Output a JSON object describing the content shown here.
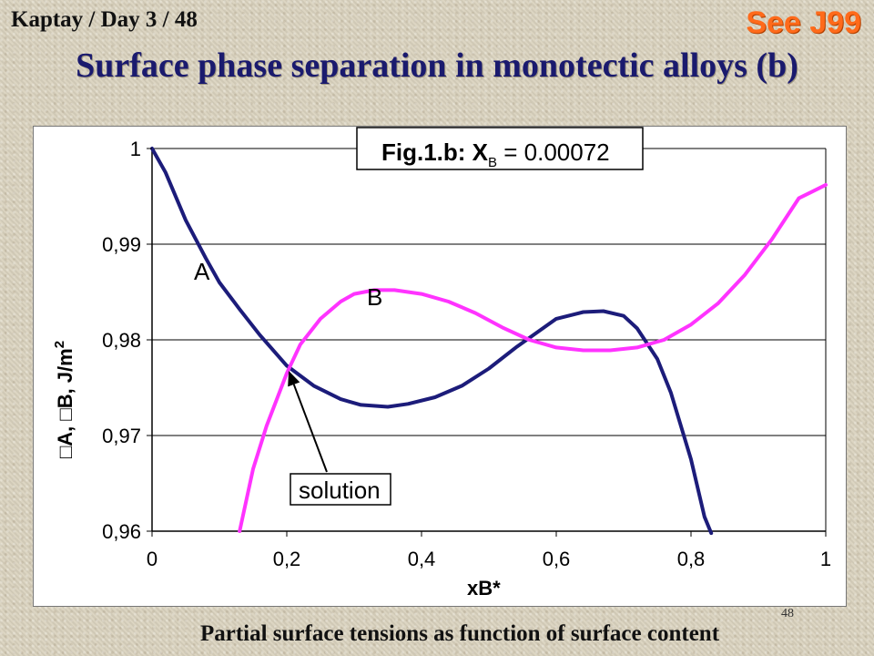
{
  "header": {
    "left_text": "Kaptay / Day 3 / 48",
    "right_text": "See J99"
  },
  "title": "Surface phase separation in monotectic alloys (b)",
  "page_number": "48",
  "caption": "Partial surface tensions as function of surface content",
  "colors": {
    "series_A": "#1c1c7a",
    "series_B": "#ff33ff",
    "title": "#1a1a6e",
    "header_right": "#ff6a1a"
  },
  "chart_data": {
    "type": "line",
    "title": "Fig.1.b: X",
    "title_subscript": "B",
    "title_value": " = 0.00072",
    "xlabel": "xB*",
    "ylabel_parts": [
      "□A, □B, J/m",
      "2"
    ],
    "xlim": [
      0,
      1
    ],
    "ylim": [
      0.96,
      1.0
    ],
    "x_ticks": [
      "0",
      "0,2",
      "0,4",
      "0,6",
      "0,8",
      "1"
    ],
    "x_tick_values": [
      0,
      0.2,
      0.4,
      0.6,
      0.8,
      1
    ],
    "y_ticks": [
      "0,96",
      "0,97",
      "0,98",
      "0,99",
      "1"
    ],
    "y_tick_values": [
      0.96,
      0.97,
      0.98,
      0.99,
      1.0
    ],
    "grid": "horizontal",
    "series": [
      {
        "name": "A",
        "points": [
          [
            0,
            1.0
          ],
          [
            0.02,
            0.9975
          ],
          [
            0.05,
            0.9925
          ],
          [
            0.08,
            0.9885
          ],
          [
            0.1,
            0.986
          ],
          [
            0.13,
            0.9832
          ],
          [
            0.16,
            0.9805
          ],
          [
            0.2,
            0.9773
          ],
          [
            0.24,
            0.9752
          ],
          [
            0.28,
            0.9738
          ],
          [
            0.31,
            0.9732
          ],
          [
            0.35,
            0.973
          ],
          [
            0.38,
            0.9733
          ],
          [
            0.42,
            0.974
          ],
          [
            0.46,
            0.9752
          ],
          [
            0.5,
            0.977
          ],
          [
            0.54,
            0.9792
          ],
          [
            0.58,
            0.9812
          ],
          [
            0.6,
            0.9822
          ],
          [
            0.64,
            0.9829
          ],
          [
            0.67,
            0.983
          ],
          [
            0.7,
            0.9825
          ],
          [
            0.72,
            0.9812
          ],
          [
            0.75,
            0.978
          ],
          [
            0.77,
            0.9745
          ],
          [
            0.8,
            0.9675
          ],
          [
            0.82,
            0.9615
          ],
          [
            0.83,
            0.9598
          ]
        ]
      },
      {
        "name": "B",
        "points": [
          [
            0.13,
            0.96
          ],
          [
            0.15,
            0.9665
          ],
          [
            0.17,
            0.971
          ],
          [
            0.2,
            0.9765
          ],
          [
            0.22,
            0.9795
          ],
          [
            0.25,
            0.9822
          ],
          [
            0.28,
            0.984
          ],
          [
            0.3,
            0.9848
          ],
          [
            0.33,
            0.9852
          ],
          [
            0.36,
            0.9852
          ],
          [
            0.4,
            0.9848
          ],
          [
            0.44,
            0.984
          ],
          [
            0.48,
            0.9828
          ],
          [
            0.52,
            0.9813
          ],
          [
            0.56,
            0.98
          ],
          [
            0.6,
            0.9792
          ],
          [
            0.64,
            0.9789
          ],
          [
            0.68,
            0.9789
          ],
          [
            0.72,
            0.9792
          ],
          [
            0.76,
            0.98
          ],
          [
            0.8,
            0.9816
          ],
          [
            0.84,
            0.9838
          ],
          [
            0.88,
            0.9868
          ],
          [
            0.92,
            0.9905
          ],
          [
            0.96,
            0.9948
          ],
          [
            1.0,
            0.9962
          ]
        ]
      }
    ],
    "annotations": [
      {
        "text": "A"
      },
      {
        "text": "B"
      },
      {
        "text": "solution",
        "points_to": [
          0.2,
          0.9773
        ]
      }
    ]
  }
}
